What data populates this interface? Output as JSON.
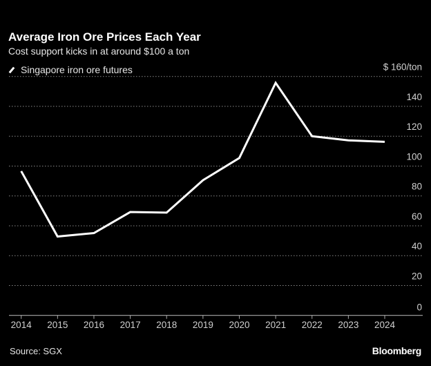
{
  "header": {
    "title": "Average Iron Ore Prices Each Year",
    "subtitle": "Cost support kicks in at around $100 a ton"
  },
  "footer": {
    "source": "Source: SGX",
    "brand": "Bloomberg"
  },
  "colors": {
    "background": "#000000",
    "line": "#ffffff",
    "grid": "#8a8a8a"
  },
  "chart_data": {
    "type": "line",
    "title": "Average Iron Ore Prices Each Year",
    "subtitle": "Cost support kicks in at around $100 a ton",
    "x": [
      2014,
      2015,
      2016,
      2017,
      2018,
      2019,
      2020,
      2021,
      2022,
      2023,
      2024
    ],
    "x_tick_labels": [
      "2014",
      "2015",
      "2016",
      "2017",
      "2018",
      "2019",
      "2020",
      "2021",
      "2022",
      "2023",
      "2024"
    ],
    "series": [
      {
        "name": "Singapore iron ore futures",
        "values": [
          96.6,
          52.8,
          55.1,
          69.2,
          68.8,
          90.5,
          105.4,
          155.7,
          120.0,
          117.2,
          116.2
        ]
      }
    ],
    "y_ticks": [
      0,
      20,
      40,
      60,
      80,
      100,
      120,
      140,
      160
    ],
    "y_tick_labels": [
      "0",
      "20",
      "40",
      "60",
      "80",
      "100",
      "120",
      "140",
      "$ 160/ton"
    ],
    "ylim": [
      0,
      160
    ],
    "y_axis_position": "right",
    "grid": "horizontal dotted",
    "legend": "top-left"
  }
}
